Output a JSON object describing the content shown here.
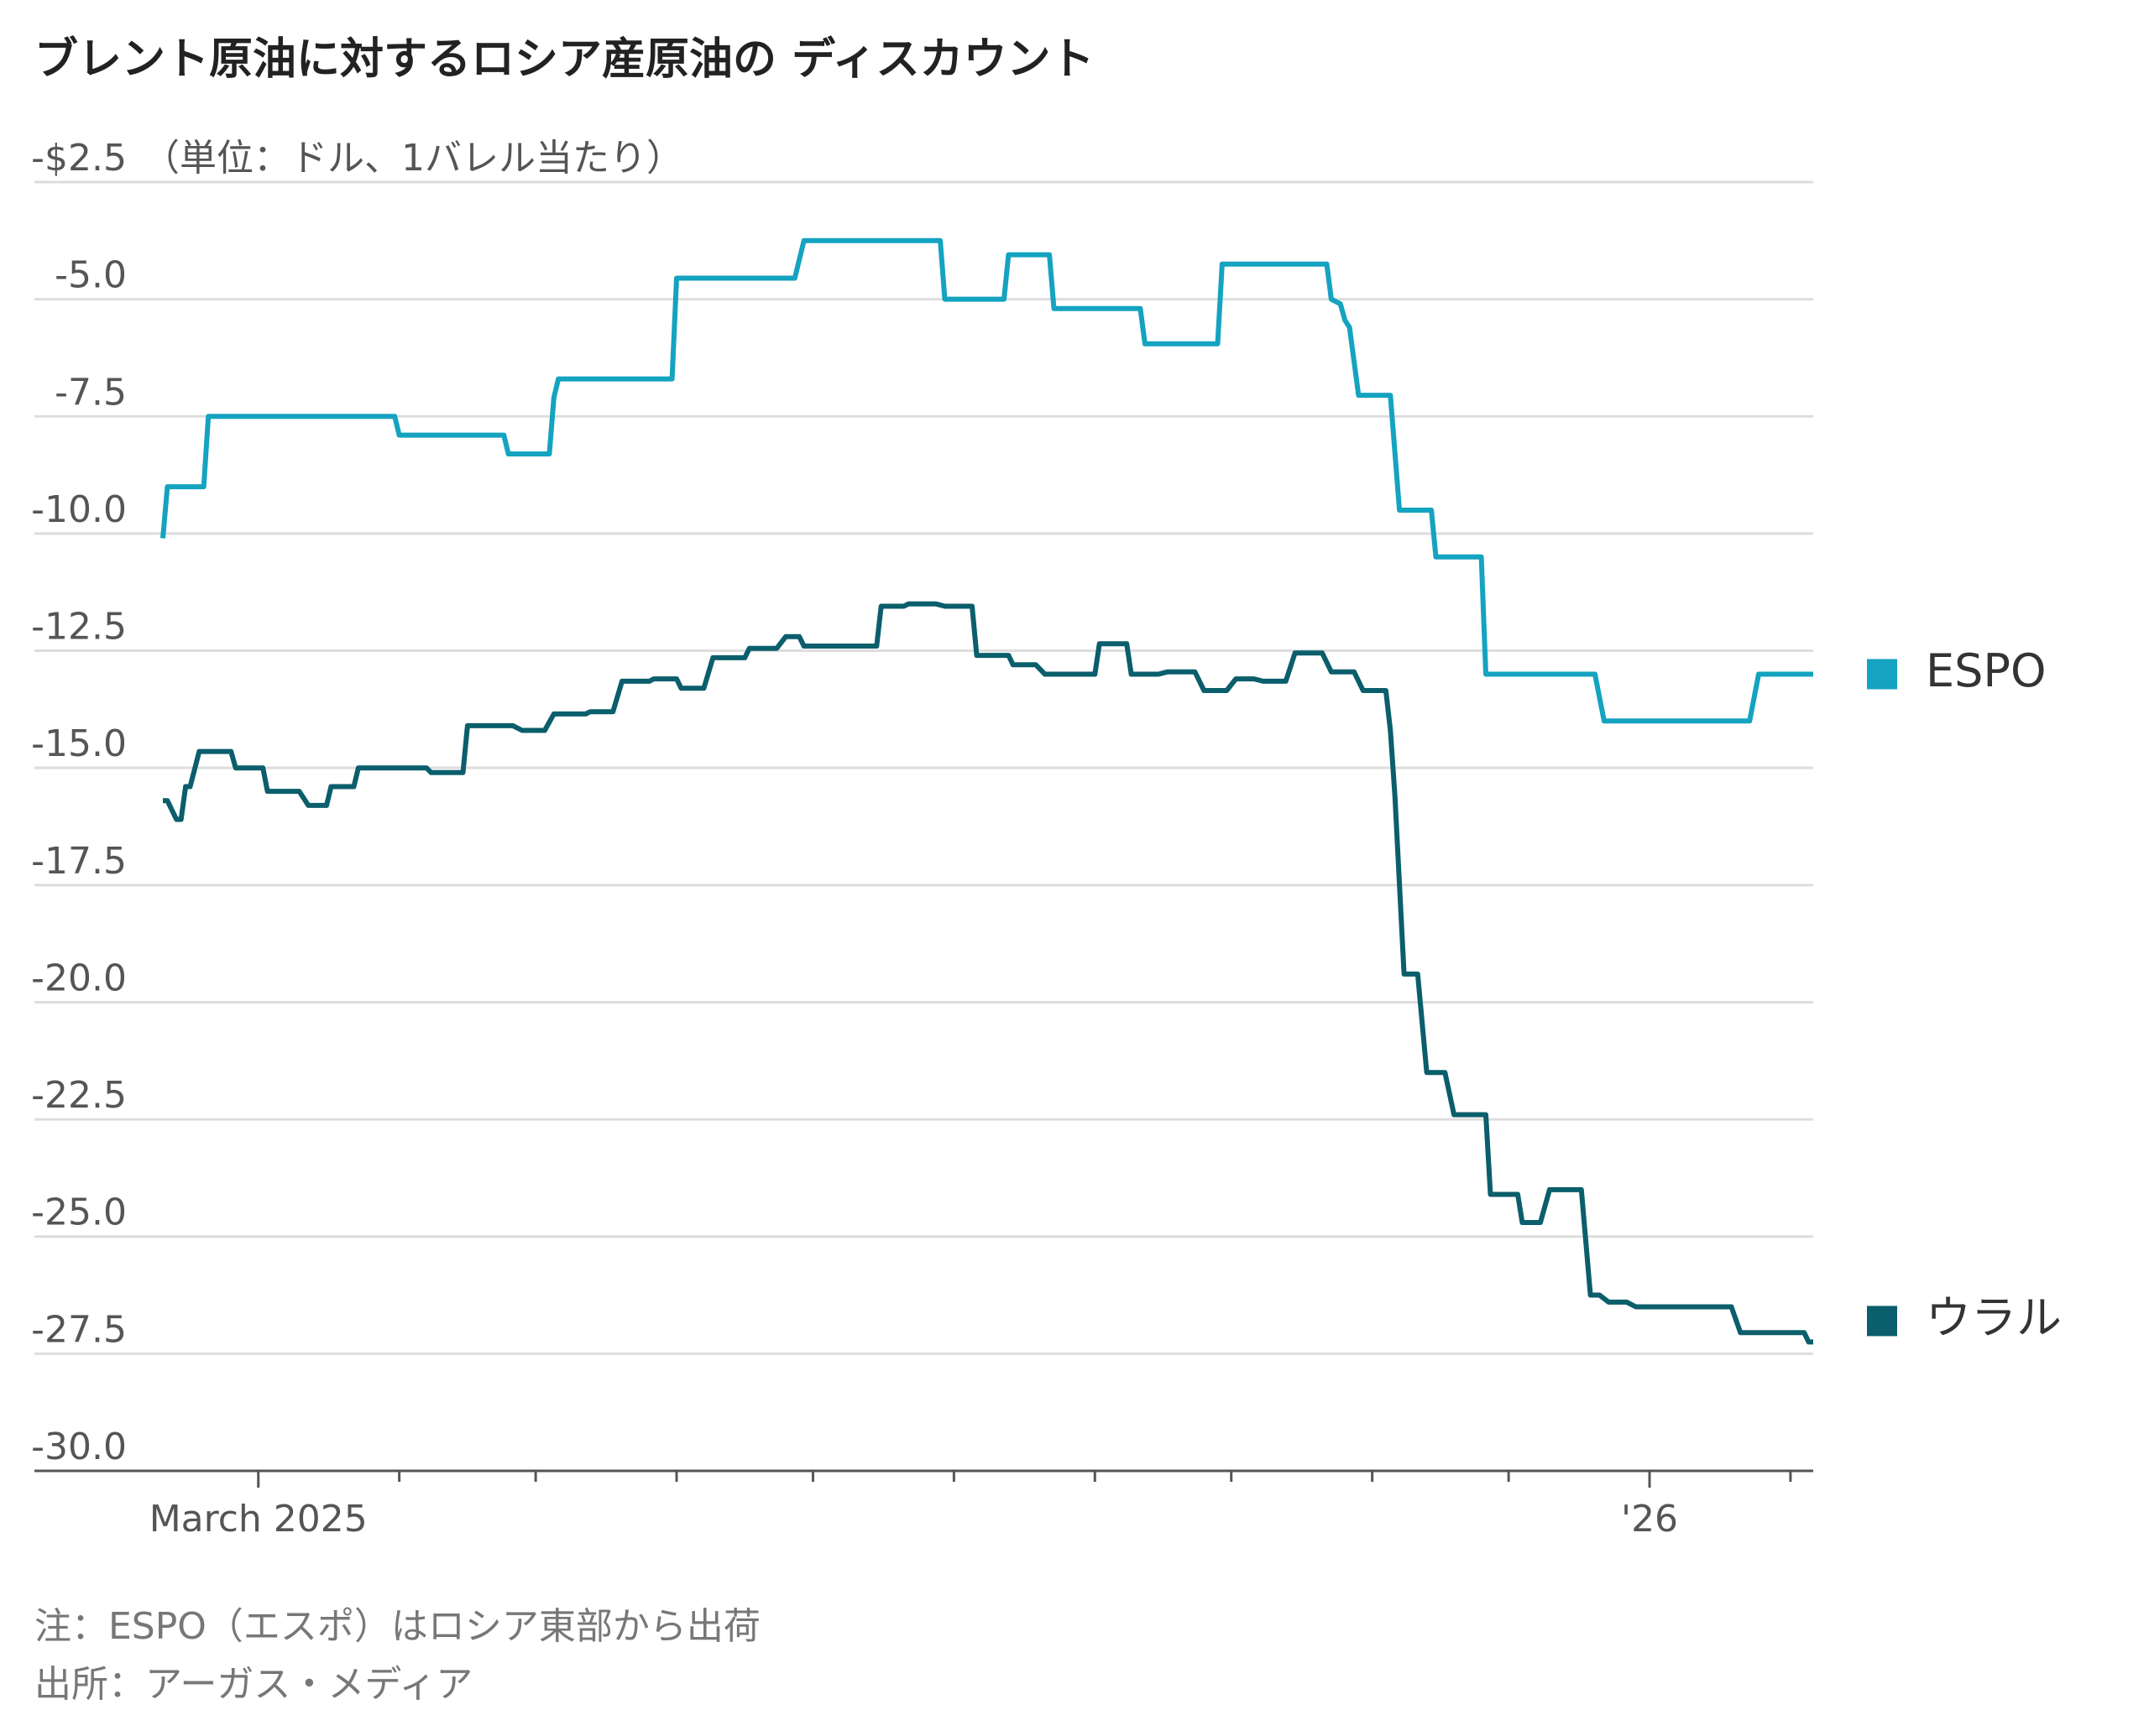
{
  "chart_data": {
    "type": "line",
    "title": "ブレント原油に対するロシア産原油の ディスカウント",
    "y_unit": "（単位：ドル、1バレル当たり）",
    "notes": [
      "注：ESPO（エスポ）はロシア東部から出荷",
      "出所：アーガス・メディア"
    ],
    "ylim": [
      -30,
      -2.5
    ],
    "yticks": [
      {
        "value": -2.5,
        "label": "-$2.5"
      },
      {
        "value": -5,
        "label": "-5.0"
      },
      {
        "value": -7.5,
        "label": "-7.5"
      },
      {
        "value": -10,
        "label": "-10.0"
      },
      {
        "value": -12.5,
        "label": "-12.5"
      },
      {
        "value": -15,
        "label": "-15.0"
      },
      {
        "value": -17.5,
        "label": "-17.5"
      },
      {
        "value": -20,
        "label": "-20.0"
      },
      {
        "value": -22.5,
        "label": "-22.5"
      },
      {
        "value": -25,
        "label": "-25.0"
      },
      {
        "value": -27.5,
        "label": "-27.5"
      },
      {
        "value": -30,
        "label": "-30.0"
      }
    ],
    "grid": true,
    "xlim": [
      -21,
      342
    ],
    "xticks": [
      {
        "value": 0,
        "label": "March 2025"
      },
      {
        "value": 306,
        "label": "'26"
      }
    ],
    "xminor_ticks": [
      31,
      61,
      92,
      122,
      153,
      184,
      214,
      245,
      275,
      337
    ],
    "legend": "right",
    "series": [
      {
        "name": "ESPO",
        "color": "#14a3c0",
        "x": [
          -21,
          -20,
          -12,
          -11,
          30,
          31,
          54,
          55,
          64,
          65,
          66,
          91,
          92,
          118,
          120,
          150,
          151,
          164,
          165,
          174,
          175,
          194,
          195,
          211,
          212,
          235,
          236,
          238,
          239,
          240,
          242,
          249,
          251,
          258,
          259,
          269,
          270,
          294,
          296,
          328,
          330,
          342
        ],
        "values": [
          -10.1,
          -9,
          -9,
          -7.5,
          -7.5,
          -7.9,
          -7.9,
          -8.3,
          -8.3,
          -7.1,
          -6.7,
          -6.7,
          -4.55,
          -4.55,
          -3.75,
          -3.75,
          -5,
          -5,
          -4.05,
          -4.05,
          -5.2,
          -5.2,
          -5.95,
          -5.95,
          -4.25,
          -4.25,
          -5,
          -5.1,
          -5.45,
          -5.6,
          -7.05,
          -7.05,
          -9.5,
          -9.5,
          -10.5,
          -10.5,
          -13,
          -13,
          -14,
          -14,
          -13,
          -13
        ]
      },
      {
        "name": "ウラル",
        "color": "#0b5e6b",
        "x": [
          -21,
          -20,
          -18,
          -17,
          -16,
          -15,
          -13,
          -6,
          -5,
          1,
          2,
          9,
          11,
          15,
          16,
          21,
          22,
          37,
          38,
          45,
          46,
          56,
          58,
          63,
          65,
          72,
          73,
          78,
          80,
          86,
          87,
          92,
          93,
          98,
          100,
          107,
          108,
          114,
          116,
          119,
          120,
          136,
          137,
          142,
          143,
          149,
          151,
          157,
          158,
          165,
          166,
          171,
          173,
          184,
          185,
          191,
          192,
          198,
          200,
          206,
          208,
          213,
          215,
          219,
          221,
          226,
          228,
          234,
          236,
          241,
          243,
          248,
          249,
          250,
          252,
          255,
          257,
          261,
          263,
          270,
          271,
          277,
          278,
          282,
          284,
          291,
          293,
          295,
          297,
          301,
          303,
          324,
          326,
          340,
          341,
          342
        ],
        "values": [
          -15.7,
          -15.7,
          -16.1,
          -16.1,
          -15.4,
          -15.4,
          -14.65,
          -14.65,
          -15,
          -15,
          -15.5,
          -15.5,
          -15.8,
          -15.8,
          -15.4,
          -15.4,
          -15,
          -15,
          -15.1,
          -15.1,
          -14.1,
          -14.1,
          -14.2,
          -14.2,
          -13.85,
          -13.85,
          -13.8,
          -13.8,
          -13.15,
          -13.15,
          -13.1,
          -13.1,
          -13.3,
          -13.3,
          -12.65,
          -12.65,
          -12.45,
          -12.45,
          -12.2,
          -12.2,
          -12.4,
          -12.4,
          -11.55,
          -11.55,
          -11.5,
          -11.5,
          -11.55,
          -11.55,
          -12.6,
          -12.6,
          -12.8,
          -12.8,
          -13,
          -13,
          -12.35,
          -12.35,
          -13,
          -13,
          -12.95,
          -12.95,
          -13.35,
          -13.35,
          -13.1,
          -13.1,
          -13.15,
          -13.15,
          -12.55,
          -12.55,
          -12.95,
          -12.95,
          -13.35,
          -13.35,
          -14.2,
          -15.6,
          -19.4,
          -19.4,
          -21.5,
          -21.5,
          -22.4,
          -22.4,
          -24.1,
          -24.1,
          -24.7,
          -24.7,
          -24,
          -24,
          -26.25,
          -26.25,
          -26.4,
          -26.4,
          -26.5,
          -26.5,
          -27.05,
          -27.05,
          -27.25,
          -27.25
        ]
      }
    ]
  }
}
